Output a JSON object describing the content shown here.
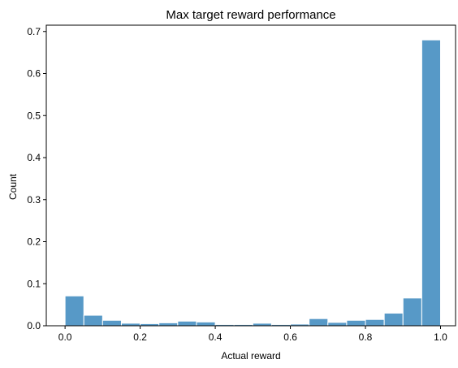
{
  "chart_data": {
    "type": "bar",
    "title": "Max target reward performance",
    "xlabel": "Actual reward",
    "ylabel": "Count",
    "xlim": [
      -0.05,
      1.04
    ],
    "ylim": [
      0,
      0.715
    ],
    "xticks": [
      0.0,
      0.2,
      0.4,
      0.6,
      0.8,
      1.0
    ],
    "xtick_labels": [
      "0.0",
      "0.2",
      "0.4",
      "0.6",
      "0.8",
      "1.0"
    ],
    "yticks": [
      0.0,
      0.1,
      0.2,
      0.3,
      0.4,
      0.5,
      0.6,
      0.7
    ],
    "ytick_labels": [
      "0.0",
      "0.1",
      "0.2",
      "0.3",
      "0.4",
      "0.5",
      "0.6",
      "0.7"
    ],
    "bin_edges": [
      0.0,
      0.05,
      0.1,
      0.15,
      0.2,
      0.25,
      0.3,
      0.35,
      0.4,
      0.45,
      0.5,
      0.55,
      0.6,
      0.65,
      0.7,
      0.75,
      0.8,
      0.85,
      0.9,
      0.95,
      1.0
    ],
    "values": [
      0.071,
      0.025,
      0.013,
      0.006,
      0.005,
      0.007,
      0.011,
      0.009,
      0.003,
      0.003,
      0.006,
      0.003,
      0.004,
      0.017,
      0.008,
      0.013,
      0.015,
      0.03,
      0.066,
      0.68
    ],
    "grid": false,
    "colors": {
      "bar_fill": "#5799c7",
      "bar_edge": "#ffffff",
      "axis": "#000000"
    }
  }
}
